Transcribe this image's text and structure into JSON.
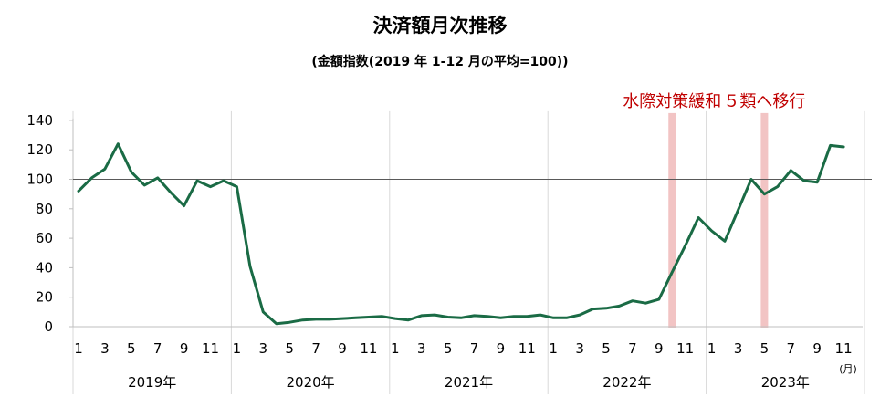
{
  "chart_data": {
    "type": "line",
    "title": "決済額月次推移",
    "subtitle": "(金額指数(2019 年 1-12 月の平均=100))",
    "xlabel": "",
    "ylabel": "",
    "ylim": [
      0,
      140
    ],
    "yticks": [
      "0",
      "20",
      "40",
      "60",
      "80",
      "100",
      "120",
      "140"
    ],
    "reference_line": 100,
    "grid": "vertical year separators",
    "unit_label": "(月)",
    "series_color": "#1a6b45",
    "band_color": "#f2c4c4",
    "years": [
      "2019年",
      "2020年",
      "2021年",
      "2022年",
      "2023年"
    ],
    "month_ticks": [
      "1",
      "3",
      "5",
      "7",
      "9",
      "11"
    ],
    "annotations": [
      {
        "text": "水際対策緩和",
        "at": "2022-10",
        "color": "#c00000"
      },
      {
        "text": "５類へ移行",
        "at": "2023-05",
        "color": "#c00000"
      }
    ],
    "series": [
      {
        "x": [
          "2019-01",
          "2019-02",
          "2019-03",
          "2019-04",
          "2019-05",
          "2019-06",
          "2019-07",
          "2019-08",
          "2019-09",
          "2019-10",
          "2019-11",
          "2019-12",
          "2020-01",
          "2020-02",
          "2020-03",
          "2020-04",
          "2020-05",
          "2020-06",
          "2020-07",
          "2020-08",
          "2020-09",
          "2020-10",
          "2020-11",
          "2020-12",
          "2021-01",
          "2021-02",
          "2021-03",
          "2021-04",
          "2021-05",
          "2021-06",
          "2021-07",
          "2021-08",
          "2021-09",
          "2021-10",
          "2021-11",
          "2021-12",
          "2022-01",
          "2022-02",
          "2022-03",
          "2022-04",
          "2022-05",
          "2022-06",
          "2022-07",
          "2022-08",
          "2022-09",
          "2022-10",
          "2022-11",
          "2022-12",
          "2023-01",
          "2023-02",
          "2023-03",
          "2023-04",
          "2023-05",
          "2023-06",
          "2023-07",
          "2023-08",
          "2023-09",
          "2023-10",
          "2023-11"
        ],
        "values": [
          92,
          101,
          107,
          124,
          105,
          96,
          101,
          91,
          82,
          99,
          95,
          99,
          95,
          41,
          10,
          2,
          3,
          4.5,
          5,
          5,
          5.5,
          6,
          6.5,
          7,
          5.5,
          4.5,
          7.5,
          8,
          6.5,
          6,
          7.5,
          7,
          6,
          7,
          7,
          8,
          6,
          6,
          8,
          12,
          12.5,
          14,
          17.5,
          16,
          18.5,
          37,
          55,
          74,
          65,
          58,
          79,
          100,
          90,
          95,
          106,
          99,
          98,
          123,
          122
        ]
      }
    ]
  }
}
